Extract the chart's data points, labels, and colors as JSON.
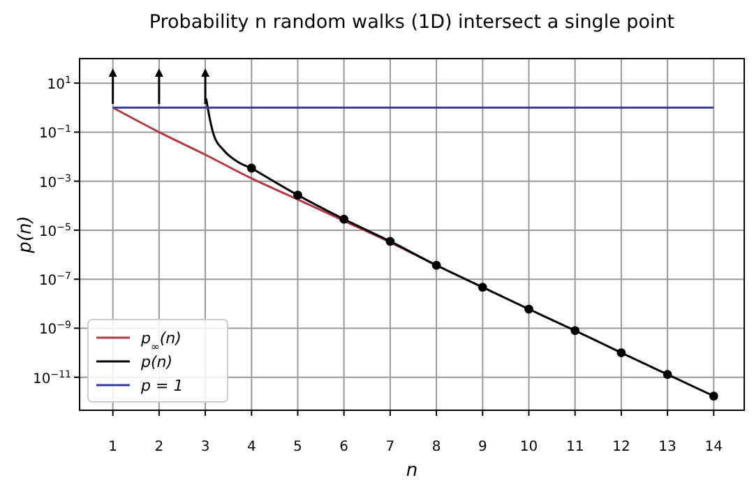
{
  "chart_data": {
    "type": "line",
    "title": "Probability n random walks (1D) intersect a single point",
    "xlabel": "n",
    "ylabel": "p(n)",
    "log": "y",
    "grid": true,
    "legend": "bottom left",
    "line_style": "solid",
    "xlim": [
      0.28,
      14.66
    ],
    "xticks": [
      1,
      2,
      3,
      4,
      5,
      6,
      7,
      8,
      9,
      10,
      11,
      12,
      13,
      14
    ],
    "ylim": [
      4.5e-13,
      100
    ],
    "yticks": [
      {
        "value": 10,
        "label": "10$^{1}$"
      },
      {
        "value": 0.1,
        "label": "10$^{−1}$"
      },
      {
        "value": 0.001,
        "label": "10$^{−3}$"
      },
      {
        "value": 1e-05,
        "label": "10$^{−5}$"
      },
      {
        "value": 1e-07,
        "label": "10$^{−7}$"
      },
      {
        "value": 1e-09,
        "label": "10$^{−9}$"
      },
      {
        "value": 1e-11,
        "label": "10$^{−11}$"
      }
    ],
    "series": [
      {
        "name": "p$_{∞}$(n)",
        "color": "#b03a48",
        "marker": "none",
        "x": [
          1,
          2,
          3,
          4,
          5,
          6,
          7,
          8
        ],
        "values": [
          1,
          0.1,
          0.012,
          0.0013,
          0.00018,
          2.4e-05,
          3.2e-06,
          3.7e-07
        ]
      },
      {
        "name": "p(n)",
        "color": "#000000",
        "marker": "circle",
        "x": [
          4,
          5,
          6,
          7,
          8,
          9,
          10,
          11,
          12,
          13,
          14
        ],
        "values": [
          0.0034,
          0.00027,
          2.8e-05,
          3.5e-06,
          3.7e-07,
          4.7e-08,
          6e-09,
          8e-10,
          1e-10,
          1.3e-11,
          1.7e-12
        ]
      },
      {
        "color": "#000000",
        "marker": "none",
        "x": [
          3.02,
          3.09,
          3.19,
          3.39,
          3.69,
          4
        ],
        "values": [
          2.3,
          0.41,
          0.07,
          0.019,
          0.0063,
          0.0034
        ]
      },
      {
        "name": "p = 1",
        "color": "#3a3a9a",
        "marker": "none",
        "x": [
          1,
          14
        ],
        "values": [
          1,
          1
        ]
      }
    ]
  }
}
